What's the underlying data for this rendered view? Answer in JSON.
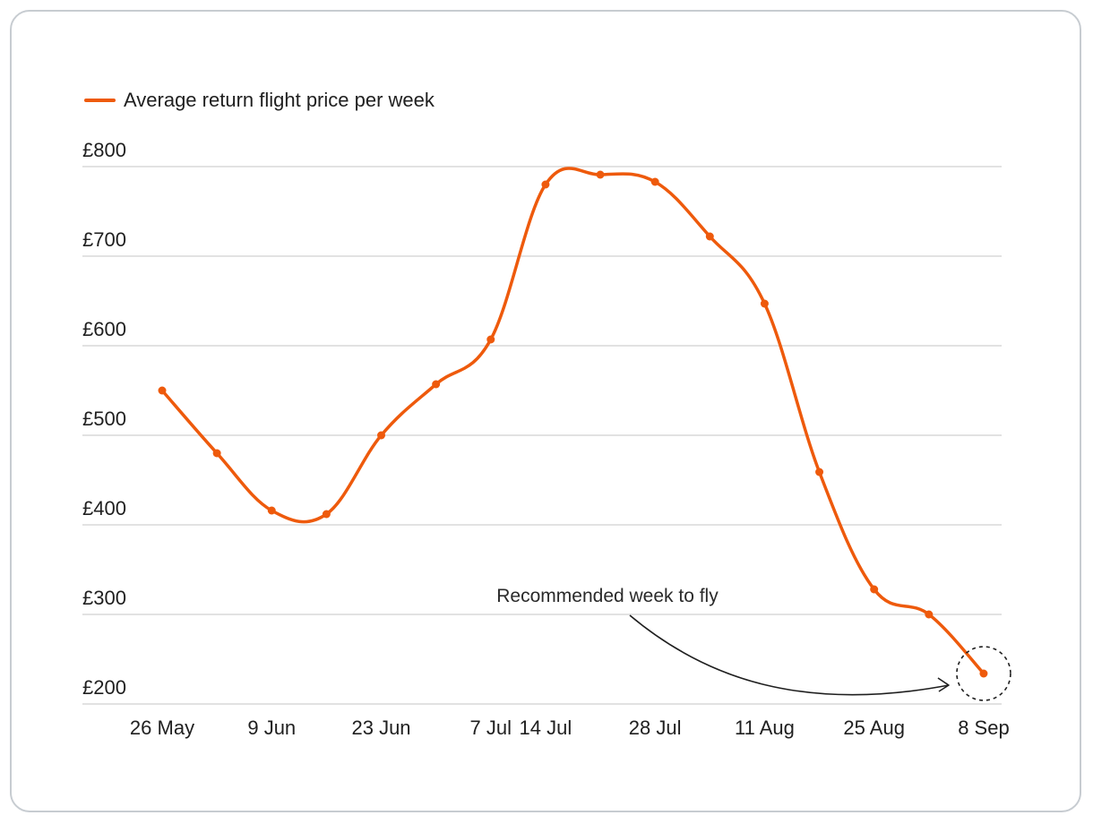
{
  "chart_data": {
    "type": "line",
    "legend": [
      "Average return flight price per week"
    ],
    "legend_position": "top-left",
    "y_tick_labels": [
      "£800",
      "£700",
      "£600",
      "£500",
      "£400",
      "£300",
      "£200"
    ],
    "y_ticks": [
      800,
      700,
      600,
      500,
      400,
      300,
      200
    ],
    "ylim": [
      200,
      800
    ],
    "x_tick_labels": [
      "26 May",
      "9 Jun",
      "23 Jun",
      "7 Jul",
      "14 Jul",
      "28 Jul",
      "11 Aug",
      "25 Aug",
      "8 Sep"
    ],
    "x_tick_weeks": [
      0,
      2,
      4,
      6,
      7,
      9,
      11,
      13,
      15
    ],
    "series": [
      {
        "name": "Average return flight price per week",
        "color": "#ee5a0c",
        "weeks": [
          0,
          1,
          2,
          3,
          4,
          5,
          6,
          7,
          8,
          9,
          10,
          11,
          12,
          13,
          14,
          15
        ],
        "values": [
          550,
          480,
          416,
          412,
          500,
          557,
          607,
          780,
          791,
          783,
          722,
          647,
          459,
          328,
          300,
          234
        ]
      }
    ],
    "annotation": {
      "text": "Recommended week to fly",
      "target_week": 15
    },
    "grid": true
  }
}
